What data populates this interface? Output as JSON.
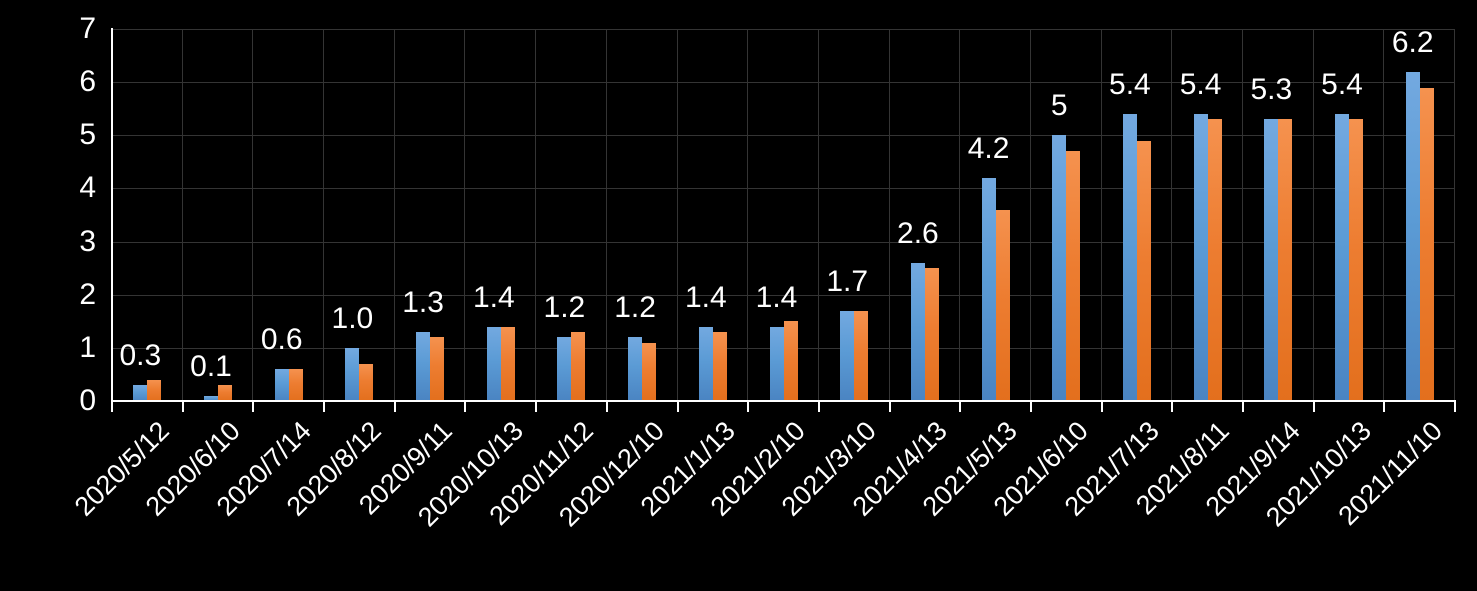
{
  "chart_data": {
    "type": "bar",
    "title": "",
    "xlabel": "",
    "ylabel": "",
    "categories": [
      "2020/5/12",
      "2020/6/10",
      "2020/7/14",
      "2020/8/12",
      "2020/9/11",
      "2020/10/13",
      "2020/11/12",
      "2020/12/10",
      "2021/1/13",
      "2021/2/10",
      "2021/3/10",
      "2021/4/13",
      "2021/5/13",
      "2021/6/10",
      "2021/7/13",
      "2021/8/11",
      "2021/9/14",
      "2021/10/13",
      "2021/11/10"
    ],
    "series": [
      {
        "name": "blue-series",
        "color": "#5B9BD5",
        "values": [
          0.3,
          0.1,
          0.6,
          1.0,
          1.3,
          1.4,
          1.2,
          1.2,
          1.4,
          1.4,
          1.7,
          2.6,
          4.2,
          5.0,
          5.4,
          5.4,
          5.3,
          5.4,
          6.2
        ],
        "data_labels": [
          "0.3",
          "0.1",
          "0.6",
          "1.0",
          "1.3",
          "1.4",
          "1.2",
          "1.2",
          "1.4",
          "1.4",
          "1.7",
          "2.6",
          "4.2",
          "5",
          "5.4",
          "5.4",
          "5.3",
          "5.4",
          "6.2"
        ],
        "labels_visible": true
      },
      {
        "name": "orange-series",
        "color": "#ED7D31",
        "values": [
          0.4,
          0.3,
          0.6,
          0.7,
          1.2,
          1.4,
          1.3,
          1.1,
          1.3,
          1.5,
          1.7,
          2.5,
          3.6,
          4.7,
          4.9,
          5.3,
          5.3,
          5.3,
          5.9
        ],
        "labels_visible": false
      }
    ],
    "ylim": [
      0,
      7
    ],
    "y_ticks": [
      "0",
      "1",
      "2",
      "3",
      "4",
      "5",
      "6",
      "7"
    ],
    "grid": true,
    "legend_position": "none",
    "x_tick_rotation_deg": 45
  },
  "style": {
    "background": "#000000",
    "gridline_color": "#343434",
    "axis_color": "#FFFFFF",
    "text_color": "#FFFFFF"
  }
}
